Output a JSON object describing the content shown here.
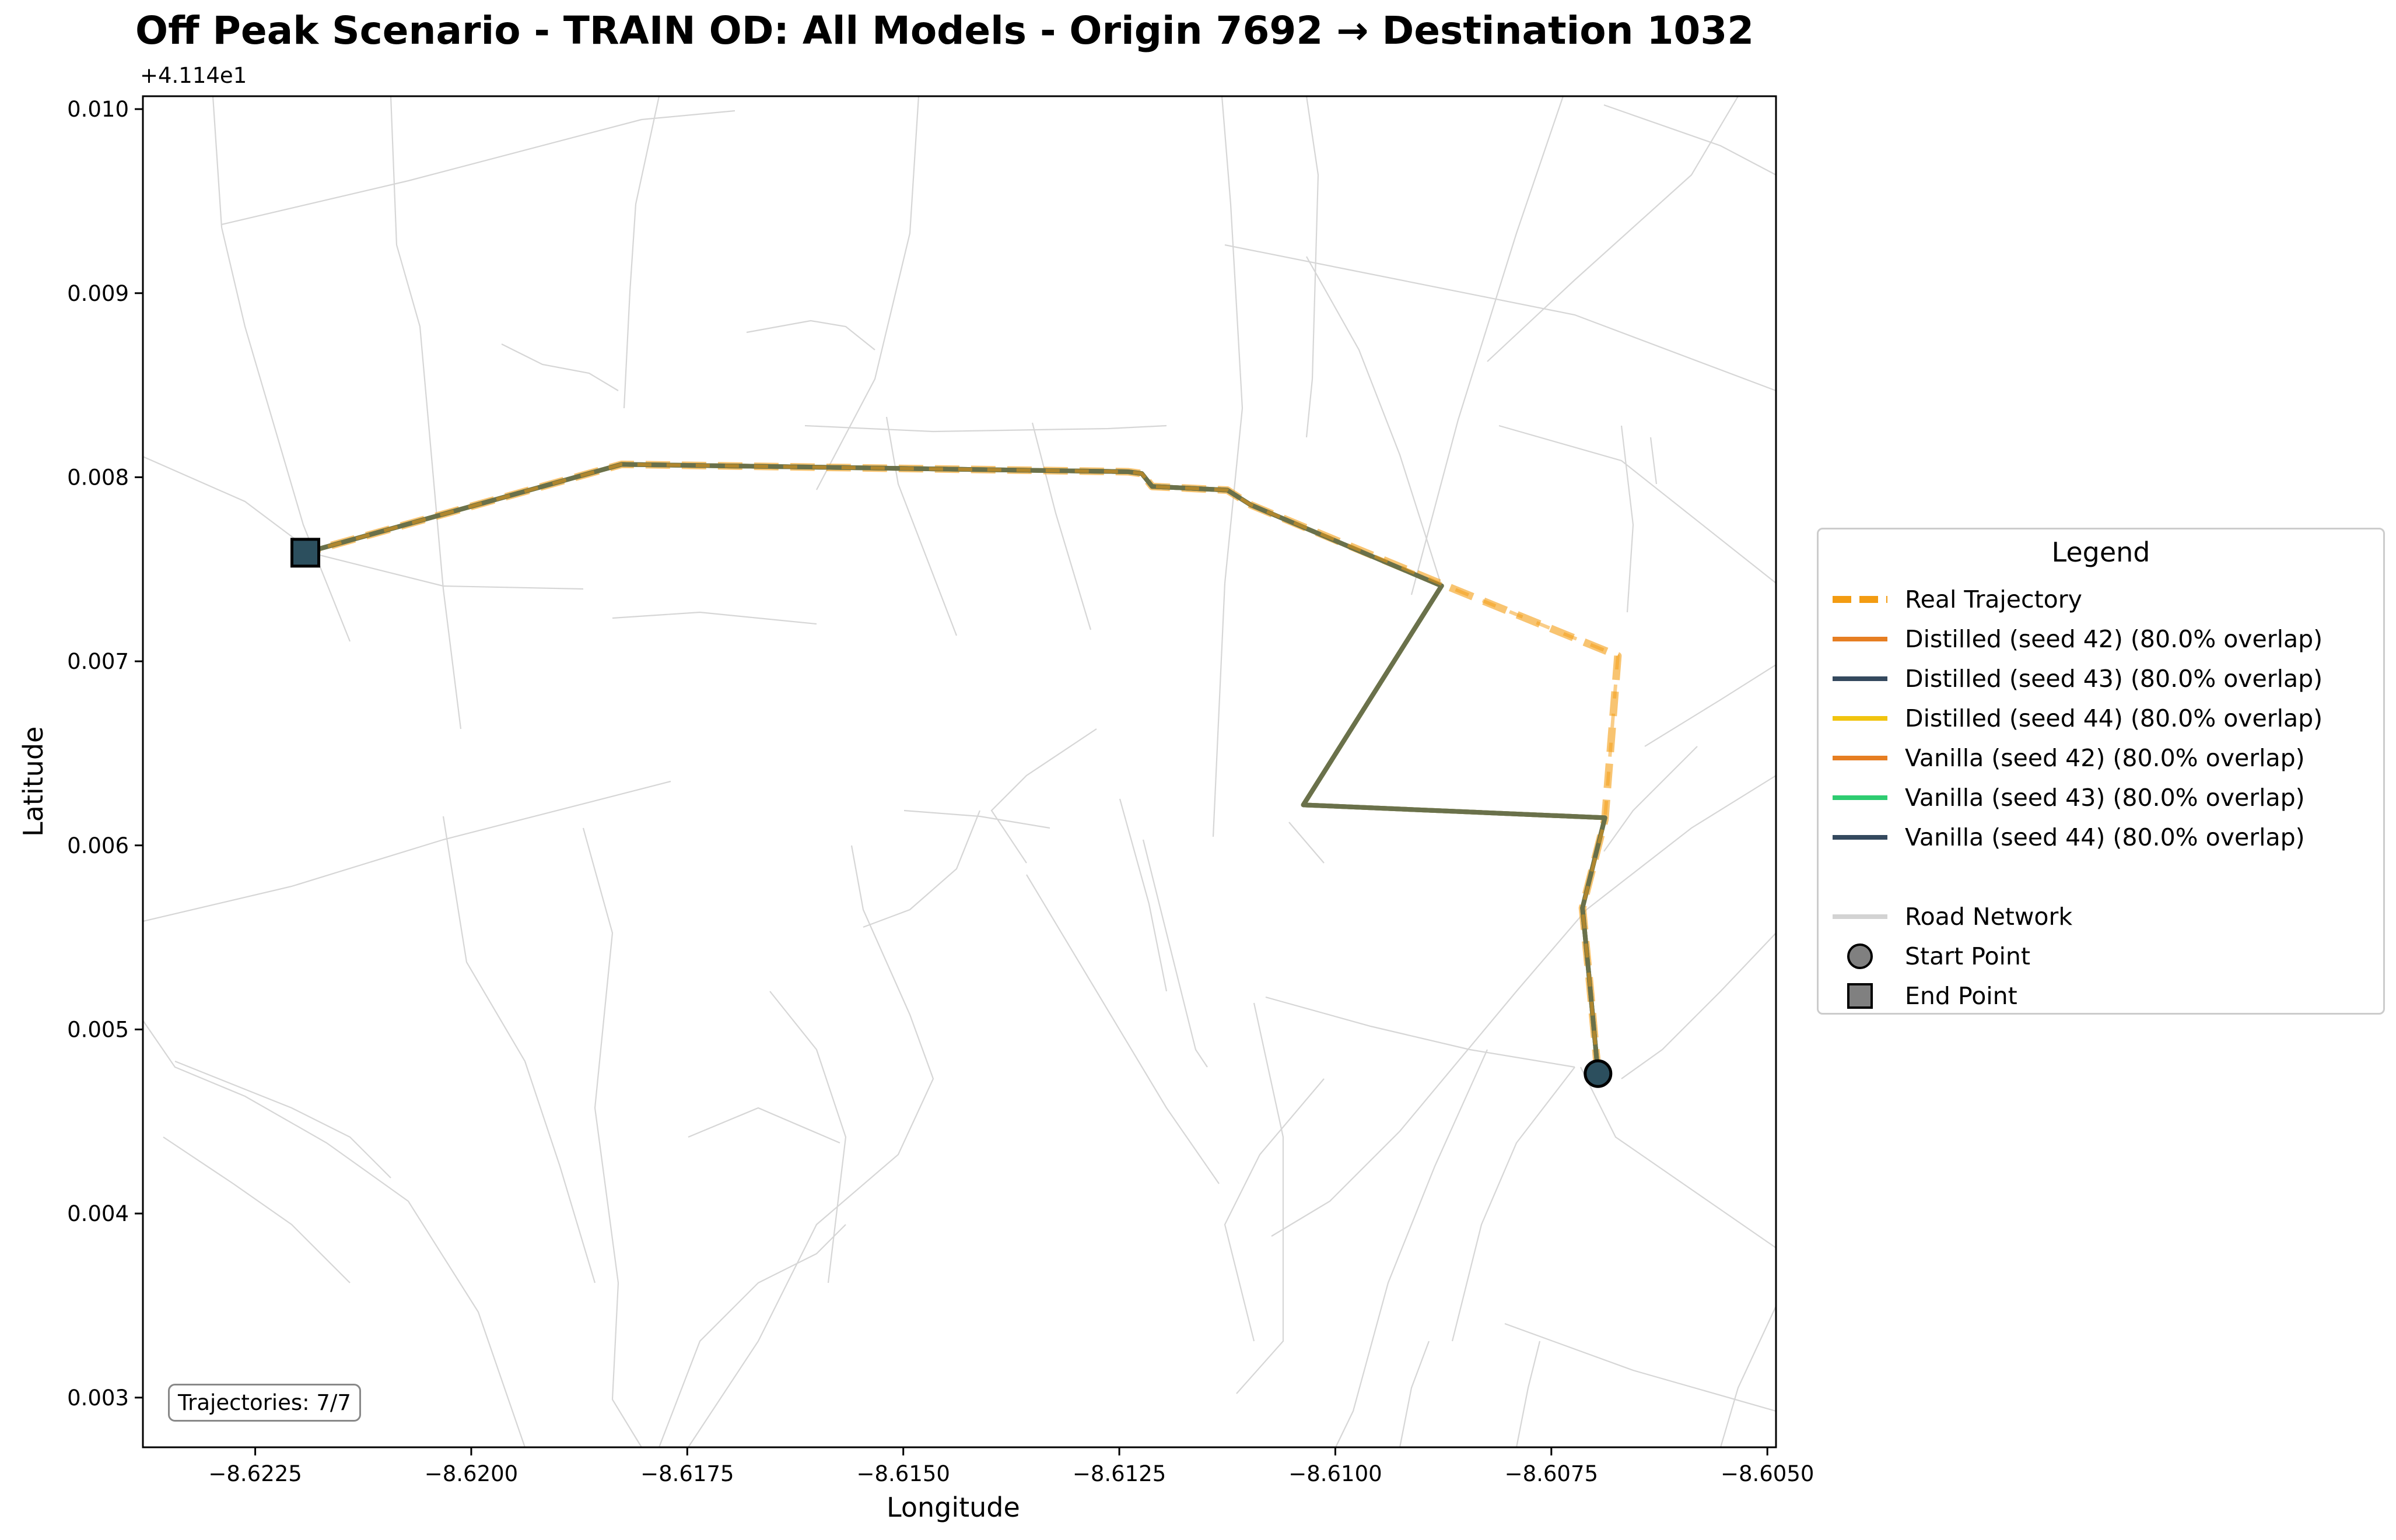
{
  "chart_data": {
    "type": "line",
    "title": "Off Peak Scenario - TRAIN OD: All Models - Origin 7692 → Destination 1032",
    "xlabel": "Longitude",
    "ylabel": "Latitude",
    "y_offset_label": "+4.114e1",
    "xlim": [
      -8.6238,
      -8.6049
    ],
    "ylim": [
      0.00273,
      0.01007
    ],
    "x_ticks": [
      -8.6225,
      -8.62,
      -8.6175,
      -8.615,
      -8.6125,
      -8.61,
      -8.6075,
      -8.605
    ],
    "x_tick_labels": [
      "−8.6225",
      "−8.6200",
      "−8.6175",
      "−8.6150",
      "−8.6125",
      "−8.6100",
      "−8.6075",
      "−8.6050"
    ],
    "y_ticks": [
      0.003,
      0.004,
      0.005,
      0.006,
      0.007,
      0.008,
      0.009,
      0.01
    ],
    "y_tick_labels": [
      "0.003",
      "0.004",
      "0.005",
      "0.006",
      "0.007",
      "0.008",
      "0.009",
      "0.010"
    ],
    "grid": false,
    "legend_title": "Legend",
    "legend_position": "right-outside",
    "series": [
      {
        "name": "Real Trajectory",
        "color": "#f39c12",
        "style": "dashed",
        "role": "real",
        "x": [
          -8.60696,
          -8.60706,
          -8.60714,
          -8.60688,
          -8.60673,
          -8.60877,
          -8.61098,
          -8.61125,
          -8.61212,
          -8.61224,
          -8.6124,
          -8.61826,
          -8.62192
        ],
        "y": [
          0.00476,
          0.00527,
          0.00566,
          0.00614,
          0.00703,
          0.00742,
          0.00785,
          0.00793,
          0.00795,
          0.00802,
          0.00803,
          0.00807,
          0.00759
        ]
      },
      {
        "name": "Distilled (seed 42) (80.0% overlap)",
        "color": "#e67e22"
      },
      {
        "name": "Distilled (seed 43) (80.0% overlap)",
        "color": "#34495e"
      },
      {
        "name": "Distilled (seed 44) (80.0% overlap)",
        "color": "#f1c40f"
      },
      {
        "name": "Vanilla (seed 42) (80.0% overlap)",
        "color": "#e67e22"
      },
      {
        "name": "Vanilla (seed 43) (80.0% overlap)",
        "color": "#2ecc71"
      },
      {
        "name": "Vanilla (seed 44) (80.0% overlap)",
        "color": "#34495e"
      }
    ],
    "predicted_path": {
      "x": [
        -8.60696,
        -8.60706,
        -8.60714,
        -8.60688,
        -8.61037,
        -8.60877,
        -8.61098,
        -8.61125,
        -8.61212,
        -8.61224,
        -8.6124,
        -8.61826,
        -8.62192
      ],
      "y": [
        0.00476,
        0.00527,
        0.00566,
        0.00615,
        0.00622,
        0.00741,
        0.00785,
        0.00793,
        0.00795,
        0.00802,
        0.00803,
        0.00807,
        0.00759
      ]
    },
    "start_point": {
      "x": -8.60696,
      "y": 0.00476
    },
    "end_point": {
      "x": -8.62192,
      "y": 0.00759
    },
    "extra_legend": [
      {
        "name": "Road Network",
        "kind": "line",
        "color": "#d3d3d3"
      },
      {
        "name": "Start Point",
        "kind": "circle",
        "color": "#808080"
      },
      {
        "name": "End Point",
        "kind": "square",
        "color": "#808080"
      }
    ],
    "annotation": "Trajectories: 7/7"
  }
}
